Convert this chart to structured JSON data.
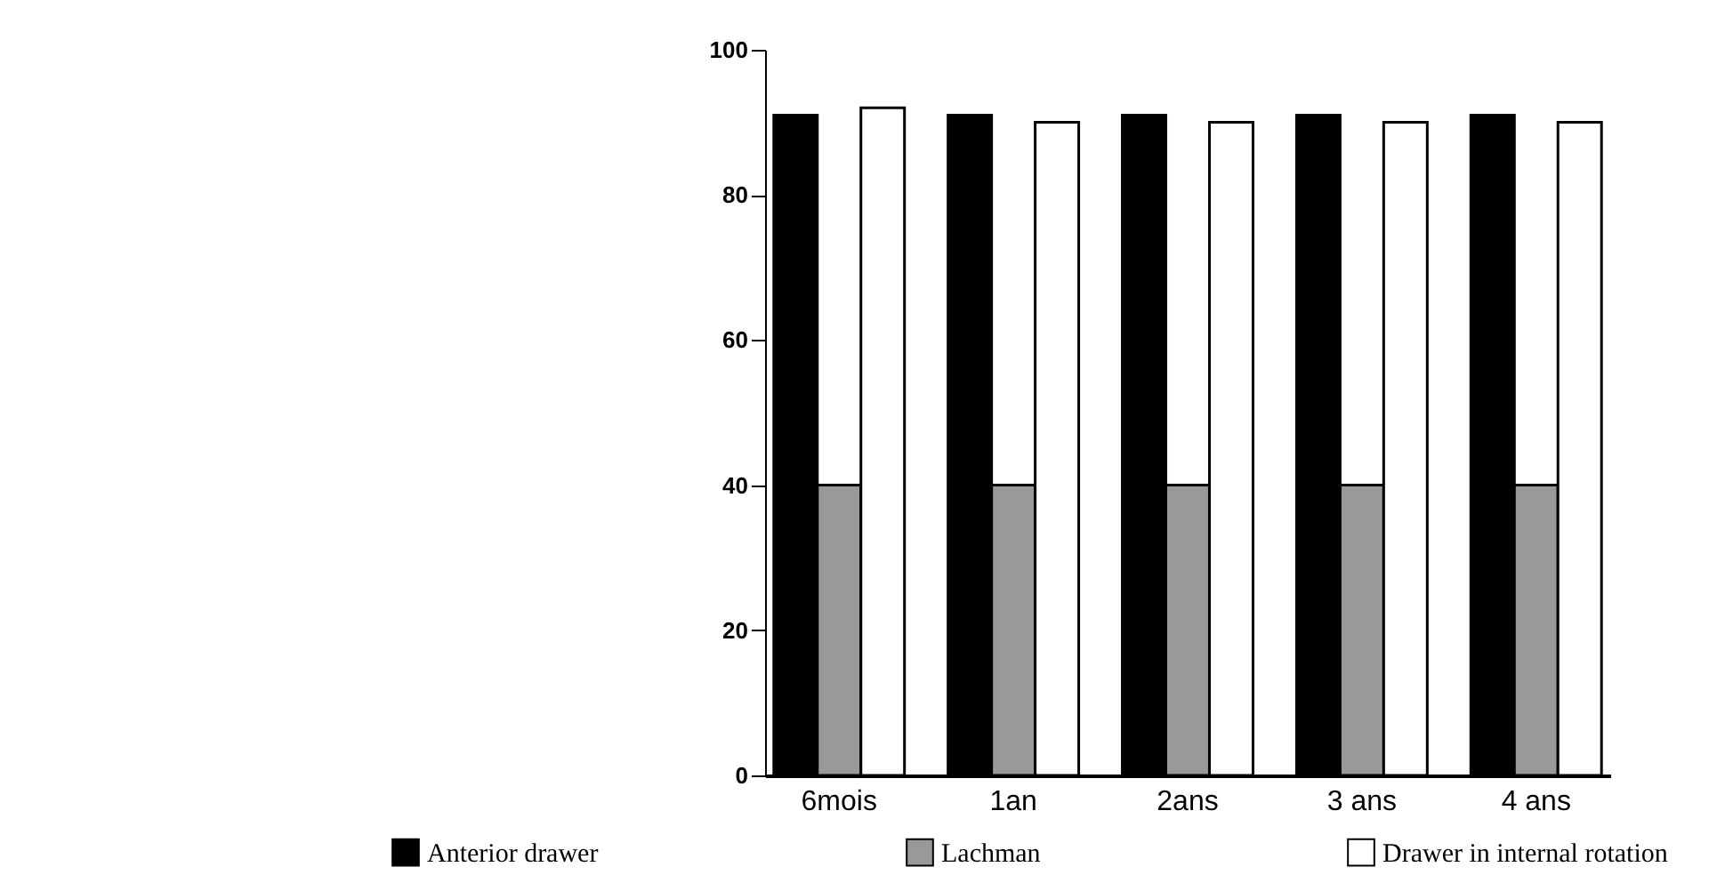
{
  "chart_data": {
    "type": "bar",
    "categories": [
      "6mois",
      "1an",
      "2ans",
      "3 ans",
      "4 ans"
    ],
    "series": [
      {
        "name": "Anterior drawer",
        "color": "#000000",
        "values": [
          91,
          91,
          91,
          91,
          91
        ]
      },
      {
        "name": "Lachman",
        "color": "#999999",
        "values": [
          40,
          40,
          40,
          40,
          40
        ]
      },
      {
        "name": "Drawer in internal rotation",
        "color": "#ffffff",
        "values": [
          92,
          90,
          90,
          90,
          90
        ]
      }
    ],
    "ylim": [
      0,
      100
    ],
    "yticks": [
      0,
      20,
      40,
      60,
      80,
      100
    ],
    "grid": false,
    "legend": "bottom"
  }
}
